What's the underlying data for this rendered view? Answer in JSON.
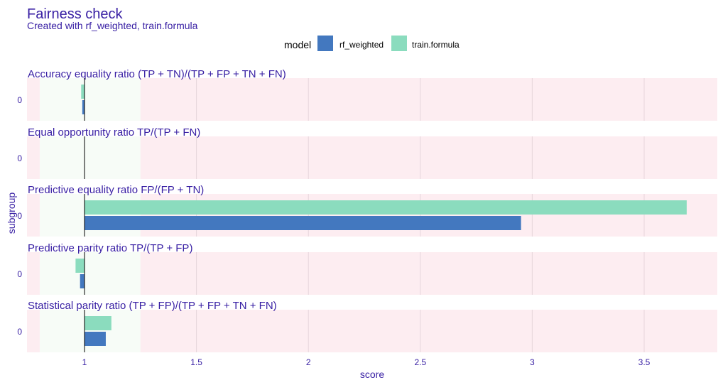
{
  "chart_data": {
    "type": "bar",
    "orientation": "horizontal",
    "title": "Fairness check",
    "subtitle": "Created with rf_weighted, train.formula",
    "legend": {
      "title": "model",
      "position": "top",
      "entries": [
        {
          "name": "rf_weighted",
          "color": "#4378bf"
        },
        {
          "name": "train.formula",
          "color": "#8bdcbe"
        }
      ]
    },
    "xlabel": "score",
    "ylabel": "subgroup",
    "xlim": [
      0.8,
      3.8
    ],
    "xticks": [
      1,
      1.5,
      2,
      2.5,
      3,
      3.5
    ],
    "xtick_labels": [
      "1",
      "1.5",
      "2",
      "2.5",
      "3",
      "3.5"
    ],
    "baseline": 1,
    "acceptable_range": [
      0.8,
      1.25
    ],
    "grid": true,
    "colors": {
      "acceptable": "#f7fcf7",
      "unacceptable": "#fdedf1",
      "grid": "#e6d5db",
      "baseline": "#000000"
    },
    "panels": [
      {
        "metric": "Accuracy equality ratio",
        "formula": "(TP + TN)/(TP + FP + TN + FN)",
        "subgroup": "0",
        "values": {
          "rf_weighted": 0.99,
          "train.formula": 0.985
        }
      },
      {
        "metric": "Equal opportunity ratio",
        "formula": "TP/(TP + FN)",
        "subgroup": "0",
        "values": {
          "rf_weighted": 1.0,
          "train.formula": 1.0
        }
      },
      {
        "metric": "Predictive equality ratio",
        "formula": "FP/(FP + TN)",
        "subgroup": "0",
        "values": {
          "rf_weighted": 2.95,
          "train.formula": 3.69
        }
      },
      {
        "metric": "Predictive parity ratio",
        "formula": "TP/(TP + FP)",
        "subgroup": "0",
        "values": {
          "rf_weighted": 0.98,
          "train.formula": 0.96
        }
      },
      {
        "metric": "Statistical parity ratio",
        "formula": "(TP + FP)/(TP + FP + TN + FN)",
        "subgroup": "0",
        "values": {
          "rf_weighted": 1.095,
          "train.formula": 1.12
        }
      }
    ]
  }
}
